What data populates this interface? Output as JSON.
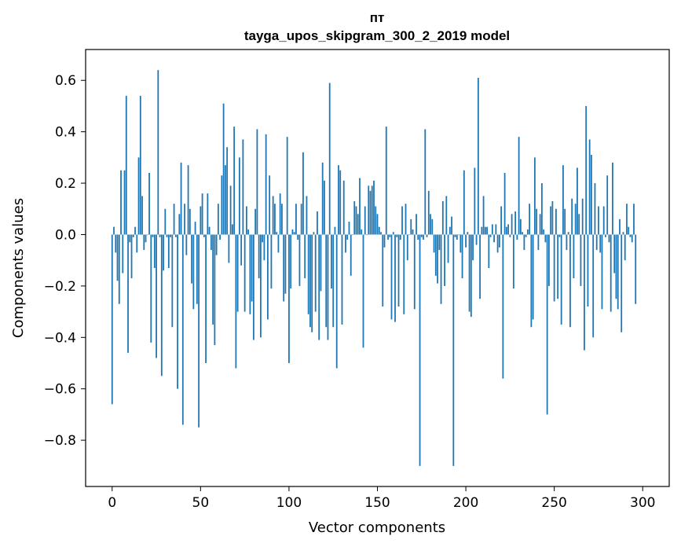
{
  "chart_data": {
    "type": "bar",
    "title": "пт",
    "subtitle": "tayga_upos_skipgram_300_2_2019 model",
    "xlabel": "Vector components",
    "ylabel": "Components values",
    "xlim": [
      -15,
      315
    ],
    "ylim": [
      -0.98,
      0.72
    ],
    "x_ticks": [
      0,
      50,
      100,
      150,
      200,
      250,
      300
    ],
    "y_ticks": [
      -0.8,
      -0.6,
      -0.4,
      -0.2,
      0.0,
      0.2,
      0.4,
      0.6
    ],
    "x_tick_labels": [
      "0",
      "50",
      "100",
      "150",
      "200",
      "250",
      "300"
    ],
    "y_tick_labels": [
      "−0.8",
      "−0.6",
      "−0.4",
      "−0.2",
      "0.0",
      "0.2",
      "0.4",
      "0.6"
    ],
    "color": "#1f77b4",
    "values": [
      -0.66,
      0.03,
      -0.07,
      -0.18,
      -0.27,
      0.25,
      -0.15,
      0.25,
      0.54,
      -0.46,
      -0.03,
      -0.17,
      -0.01,
      0.03,
      -0.07,
      0.3,
      0.54,
      0.15,
      -0.06,
      -0.03,
      0.0,
      0.24,
      -0.42,
      -0.01,
      -0.13,
      -0.48,
      0.64,
      -0.01,
      -0.55,
      -0.14,
      0.1,
      -0.01,
      -0.13,
      -0.01,
      -0.36,
      0.12,
      -0.01,
      -0.6,
      0.08,
      0.28,
      -0.74,
      0.12,
      -0.08,
      0.27,
      0.1,
      -0.19,
      -0.29,
      0.05,
      -0.27,
      -0.75,
      0.11,
      0.16,
      -0.01,
      -0.5,
      0.16,
      0.03,
      -0.06,
      -0.35,
      -0.43,
      -0.08,
      0.12,
      -0.02,
      0.23,
      0.51,
      0.27,
      0.34,
      -0.11,
      0.19,
      0.04,
      0.42,
      -0.52,
      -0.3,
      0.3,
      -0.12,
      0.37,
      -0.3,
      0.11,
      0.02,
      -0.31,
      -0.26,
      -0.41,
      0.1,
      0.41,
      -0.17,
      -0.4,
      -0.03,
      -0.1,
      0.39,
      -0.33,
      0.23,
      -0.21,
      0.15,
      0.12,
      0.01,
      -0.07,
      0.16,
      0.12,
      -0.26,
      -0.23,
      0.38,
      -0.5,
      -0.21,
      0.02,
      0.01,
      0.12,
      -0.02,
      -0.2,
      0.12,
      0.32,
      -0.17,
      0.15,
      -0.31,
      -0.36,
      -0.38,
      0.01,
      -0.3,
      0.09,
      -0.41,
      -0.22,
      0.28,
      0.21,
      -0.36,
      -0.41,
      0.59,
      -0.21,
      -0.36,
      0.03,
      -0.52,
      0.27,
      0.25,
      -0.35,
      0.21,
      -0.07,
      -0.02,
      0.05,
      -0.16,
      0.0,
      0.13,
      0.11,
      0.08,
      0.22,
      0.02,
      -0.44,
      0.11,
      0.0,
      0.19,
      0.17,
      0.19,
      0.21,
      0.11,
      0.08,
      0.03,
      0.01,
      -0.28,
      -0.05,
      0.42,
      -0.02,
      -0.01,
      -0.33,
      0.01,
      -0.34,
      -0.01,
      -0.28,
      -0.02,
      0.11,
      -0.31,
      0.12,
      -0.1,
      0.0,
      0.06,
      0.02,
      -0.29,
      0.08,
      -0.02,
      -0.9,
      -0.01,
      -0.02,
      0.41,
      -0.01,
      0.17,
      0.08,
      0.06,
      -0.07,
      -0.16,
      -0.19,
      -0.06,
      -0.27,
      0.13,
      -0.2,
      0.15,
      -0.11,
      0.03,
      0.07,
      -0.9,
      -0.01,
      -0.02,
      0.0,
      -0.07,
      -0.17,
      0.25,
      -0.05,
      0.01,
      -0.3,
      -0.32,
      -0.1,
      0.26,
      -0.04,
      0.61,
      -0.25,
      0.03,
      0.15,
      0.03,
      0.03,
      -0.13,
      -0.01,
      0.04,
      -0.03,
      0.04,
      -0.07,
      -0.05,
      0.11,
      -0.56,
      0.24,
      0.03,
      0.04,
      -0.01,
      0.08,
      -0.21,
      0.09,
      -0.02,
      0.38,
      0.06,
      0.01,
      -0.06,
      -0.01,
      0.02,
      0.12,
      -0.36,
      -0.33,
      0.3,
      0.1,
      -0.06,
      0.08,
      0.2,
      0.02,
      -0.03,
      -0.7,
      -0.2,
      0.11,
      0.13,
      -0.26,
      0.1,
      -0.25,
      -0.01,
      -0.35,
      0.27,
      0.1,
      -0.06,
      0.01,
      -0.36,
      0.14,
      -0.17,
      0.12,
      0.26,
      0.08,
      -0.2,
      0.14,
      -0.45,
      0.5,
      -0.28,
      0.37,
      0.31,
      -0.4,
      0.2,
      -0.06,
      0.11,
      -0.07,
      -0.29,
      0.11,
      -0.01,
      0.23,
      -0.03,
      -0.3,
      0.28,
      -0.15,
      -0.25,
      -0.29,
      0.06,
      -0.38,
      0.01,
      -0.1,
      0.12,
      0.03,
      -0.01,
      -0.03,
      0.12,
      -0.27
    ]
  }
}
